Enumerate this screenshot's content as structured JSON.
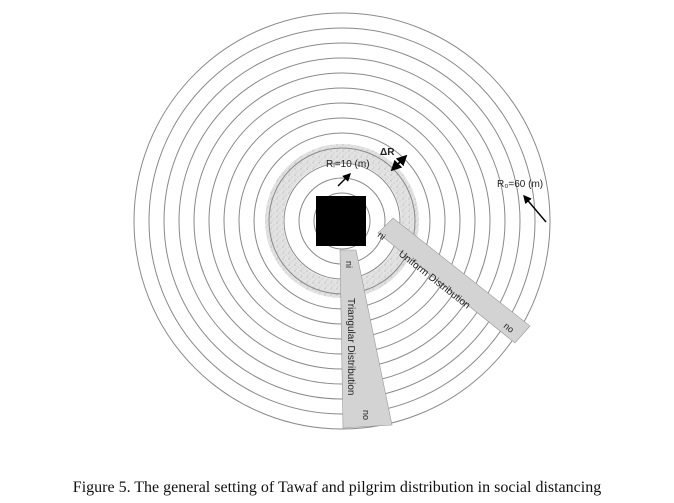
{
  "diagram": {
    "ring_count": 13,
    "labels": {
      "inner_radius": "Rᵢ=10 (m)",
      "delta_r": "ΔR",
      "outer_radius": "R₀=60 (m)",
      "uniform": "Uniform Distribution",
      "triangular": "Triangular Distribution",
      "ni_uniform": "ni",
      "no_uniform": "no",
      "ni_triangular": "ni",
      "no_triangular": "no"
    },
    "colors": {
      "ring_stroke": "#8a8a8a",
      "speckle_band": "#d8d8d8",
      "kaaba": "#000000",
      "sector_fill": "#d4d4d4",
      "arrow": "#000000"
    }
  },
  "caption": "Figure 5. The general setting of Tawaf and pilgrim distribution in social distancing"
}
